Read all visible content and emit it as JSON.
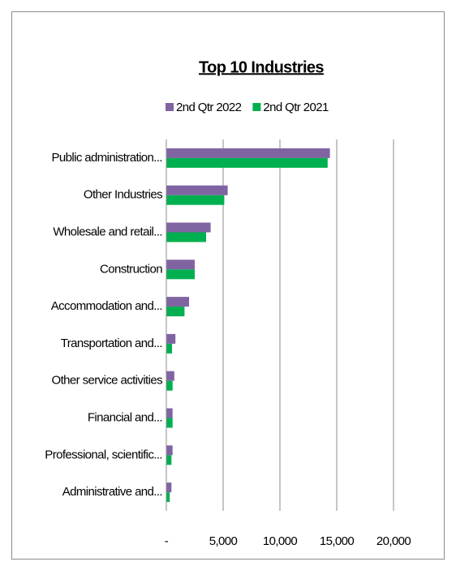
{
  "chart_data": {
    "type": "hbar",
    "title": "Top 10 Industries",
    "categories": [
      "Public administration...",
      "Other Industries",
      "Wholesale and retail...",
      "Construction",
      "Accommodation and...",
      "Transportation and...",
      "Other service activities",
      "Financial and...",
      "Professional, scientific...",
      "Administrative and..."
    ],
    "series": [
      {
        "name": "2nd Qtr 2022",
        "color": "#8064a2",
        "values": [
          14400,
          5400,
          3900,
          2500,
          2000,
          800,
          700,
          550,
          550,
          450
        ]
      },
      {
        "name": "2nd Qtr 2021",
        "color": "#00b050",
        "values": [
          14200,
          5100,
          3500,
          2500,
          1600,
          500,
          550,
          550,
          450,
          300
        ]
      }
    ],
    "xlim": [
      0,
      20000
    ],
    "xticks": [
      {
        "value": 0,
        "label": "-"
      },
      {
        "value": 5000,
        "label": "5,000"
      },
      {
        "value": 10000,
        "label": "10,000"
      },
      {
        "value": 15000,
        "label": "15,000"
      },
      {
        "value": 20000,
        "label": "20,000"
      }
    ],
    "grid": true,
    "legend": "top"
  }
}
